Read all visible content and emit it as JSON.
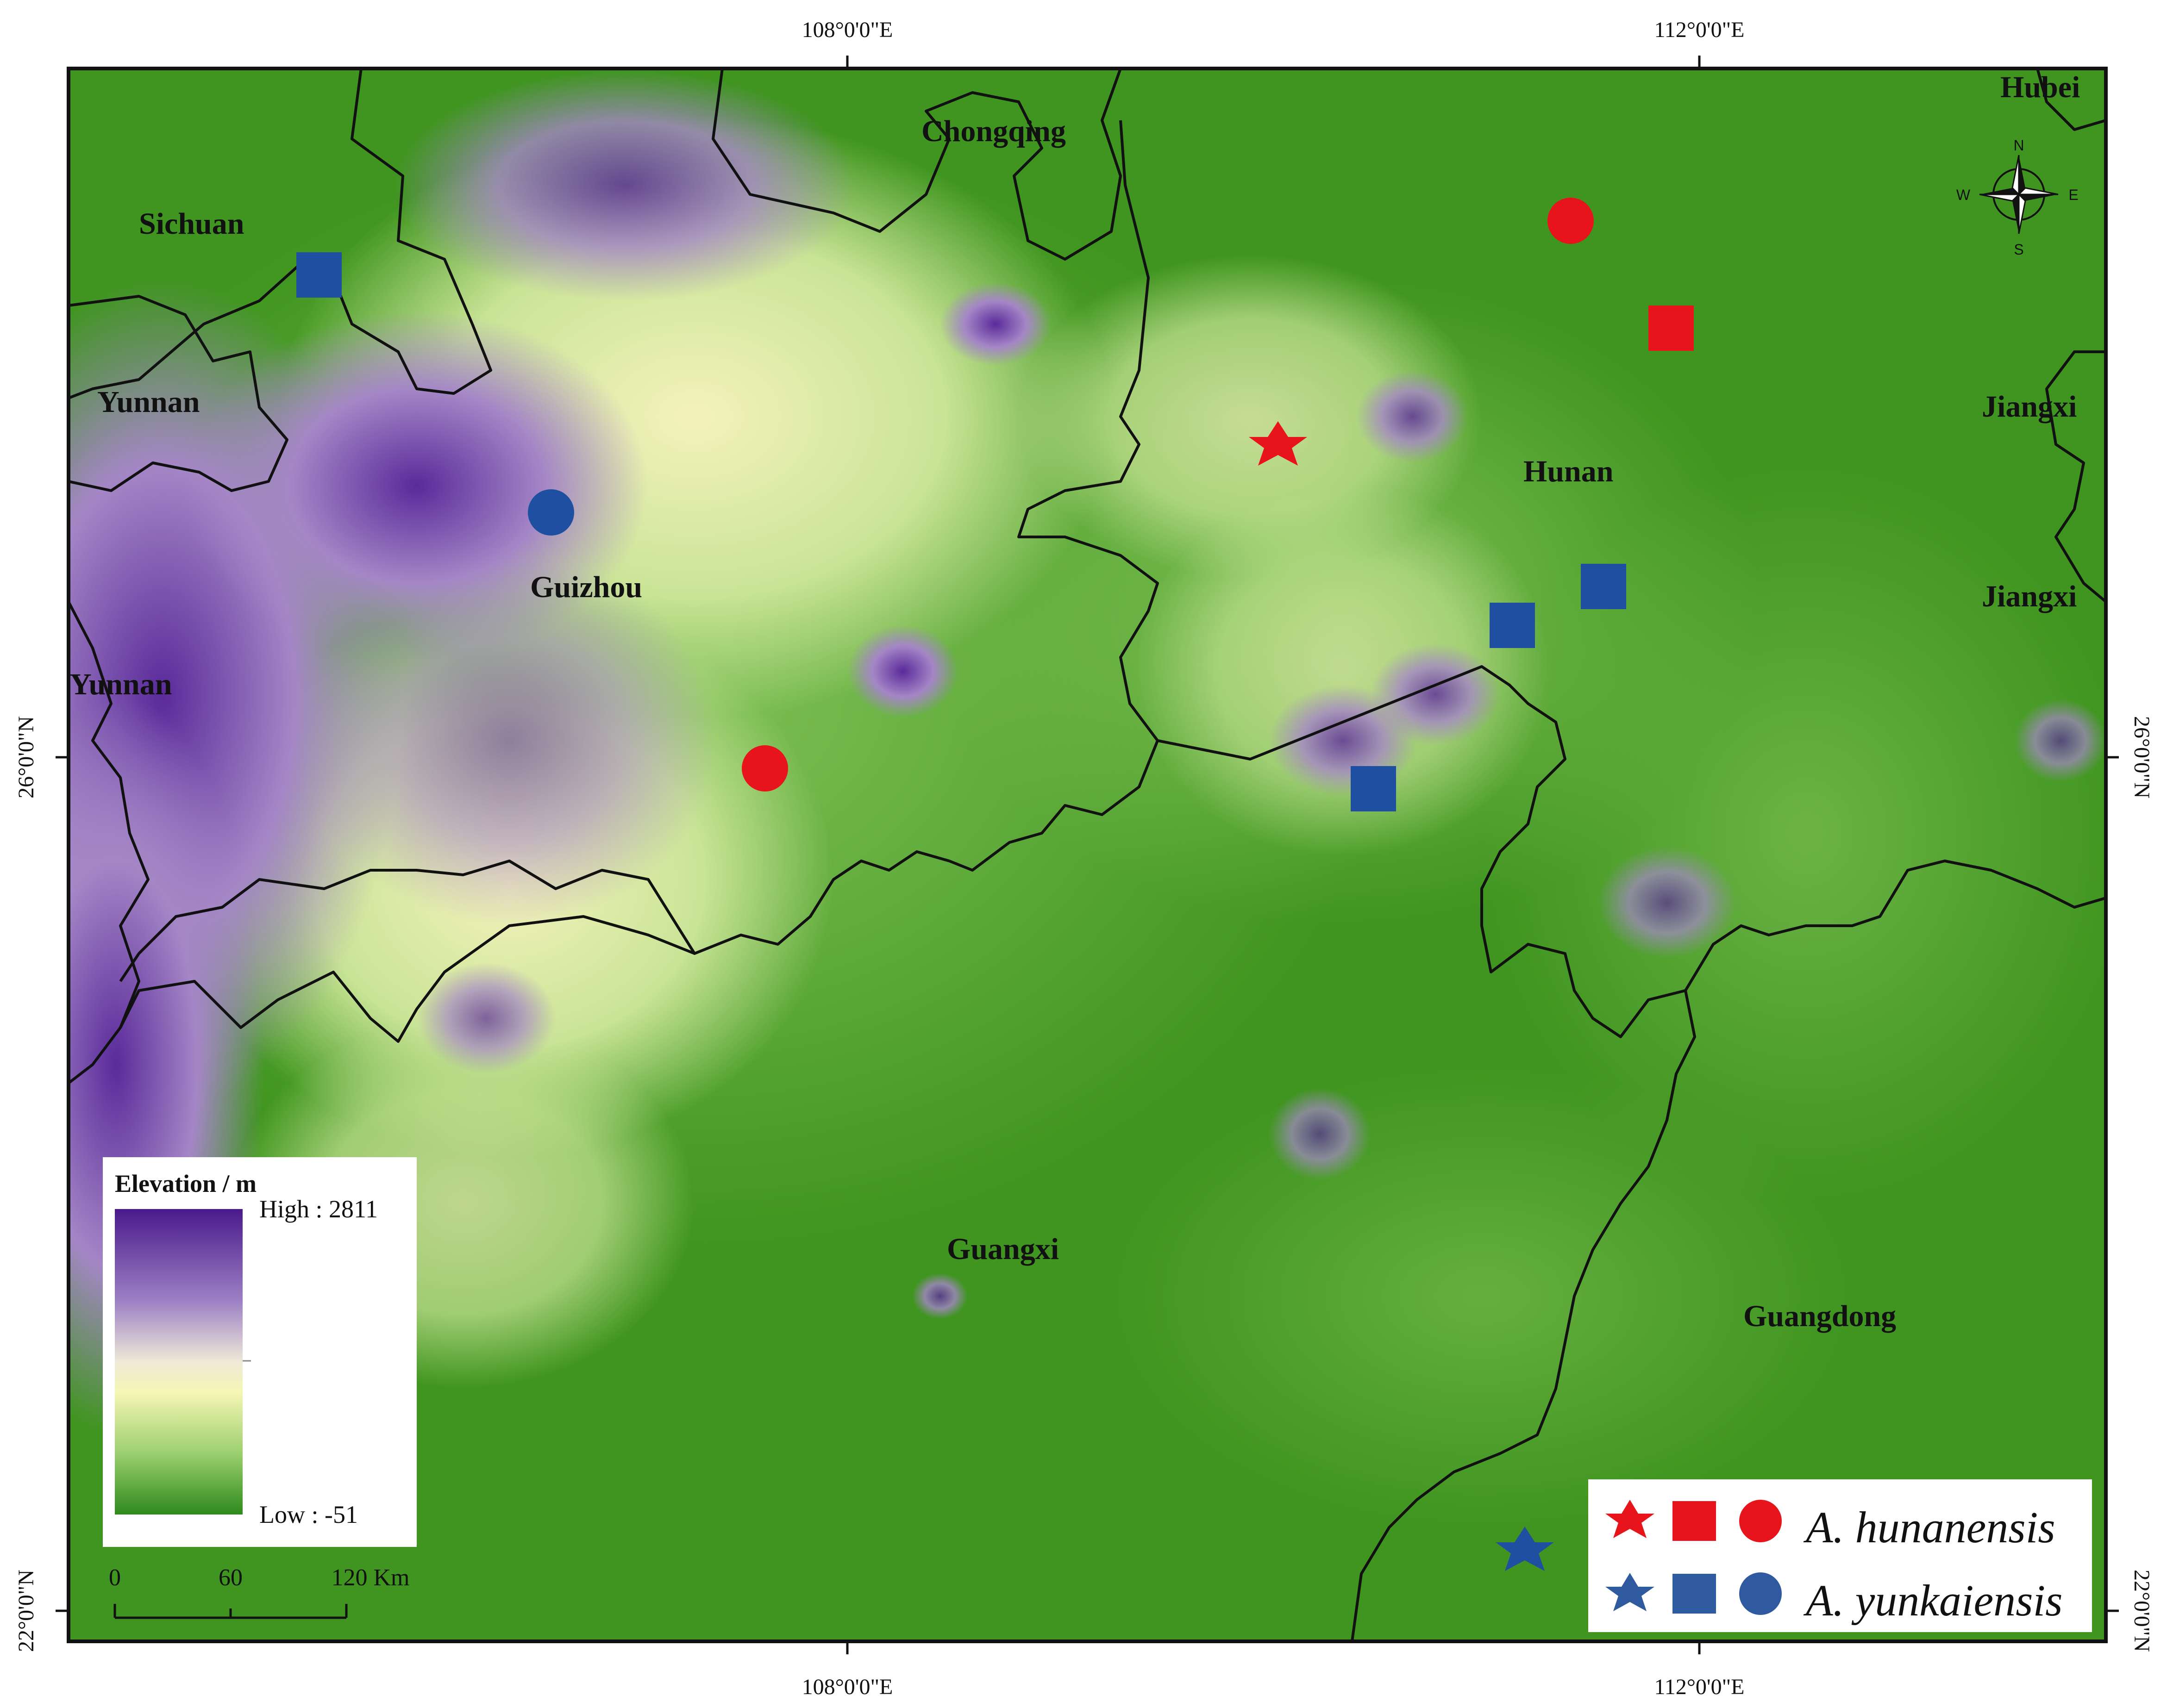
{
  "coordinates": {
    "top_x": [
      "108°0'0\"E",
      "112°0'0\"E"
    ],
    "bottom_x": [
      "108°0'0\"E",
      "112°0'0\"E"
    ],
    "left_y": [
      "26°0'0\"N",
      "22°0'0\"N"
    ],
    "right_y": [
      "26°0'0\"N",
      "22°0'0\"N"
    ]
  },
  "provinces": {
    "sichuan": "Sichuan",
    "chongqing": "Chongqing",
    "hubei": "Hubei",
    "yunnan_north": "Yunnan",
    "yunnan_south": "Yunnan",
    "guizhou": "Guizhou",
    "hunan": "Hunan",
    "jiangxi_north": "Jiangxi",
    "jiangxi_south": "Jiangxi",
    "guangxi": "Guangxi",
    "guangdong": "Guangdong"
  },
  "elevation_legend": {
    "title": "Elevation / m",
    "high": "High : 2811",
    "low": "Low : -51",
    "colors": [
      "#4a1a8c",
      "#8a6bb8",
      "#ece6d6",
      "#f6f6b6",
      "#9ccf6f",
      "#2e8a1c"
    ]
  },
  "scale_bar": {
    "ticks": [
      "0",
      "60",
      "120 Km"
    ]
  },
  "compass": {
    "n": "N",
    "s": "S",
    "e": "E",
    "w": "W"
  },
  "species_legend": {
    "species_1": "A. hunanensis",
    "species_1_color": "#e8141c",
    "species_2": "A. yunkaiensis",
    "species_2_color": "#1f4fa0",
    "species_2_legend_color": "#2f5aa0"
  },
  "map_colors": {
    "lowland": "#3f951f",
    "midland": "#9bcf67",
    "upland": "#f3f1b8",
    "highland": "#a784c4",
    "peak": "#4a1f8e"
  },
  "sites": [
    {
      "species": "A. hunanensis",
      "shape": "star"
    },
    {
      "species": "A. hunanensis",
      "shape": "circle"
    },
    {
      "species": "A. hunanensis",
      "shape": "square"
    },
    {
      "species": "A. hunanensis",
      "shape": "circle"
    },
    {
      "species": "A. yunkaiensis",
      "shape": "square"
    },
    {
      "species": "A. yunkaiensis",
      "shape": "circle"
    },
    {
      "species": "A. yunkaiensis",
      "shape": "square"
    },
    {
      "species": "A. yunkaiensis",
      "shape": "square"
    },
    {
      "species": "A. yunkaiensis",
      "shape": "square"
    },
    {
      "species": "A. yunkaiensis",
      "shape": "star"
    }
  ]
}
